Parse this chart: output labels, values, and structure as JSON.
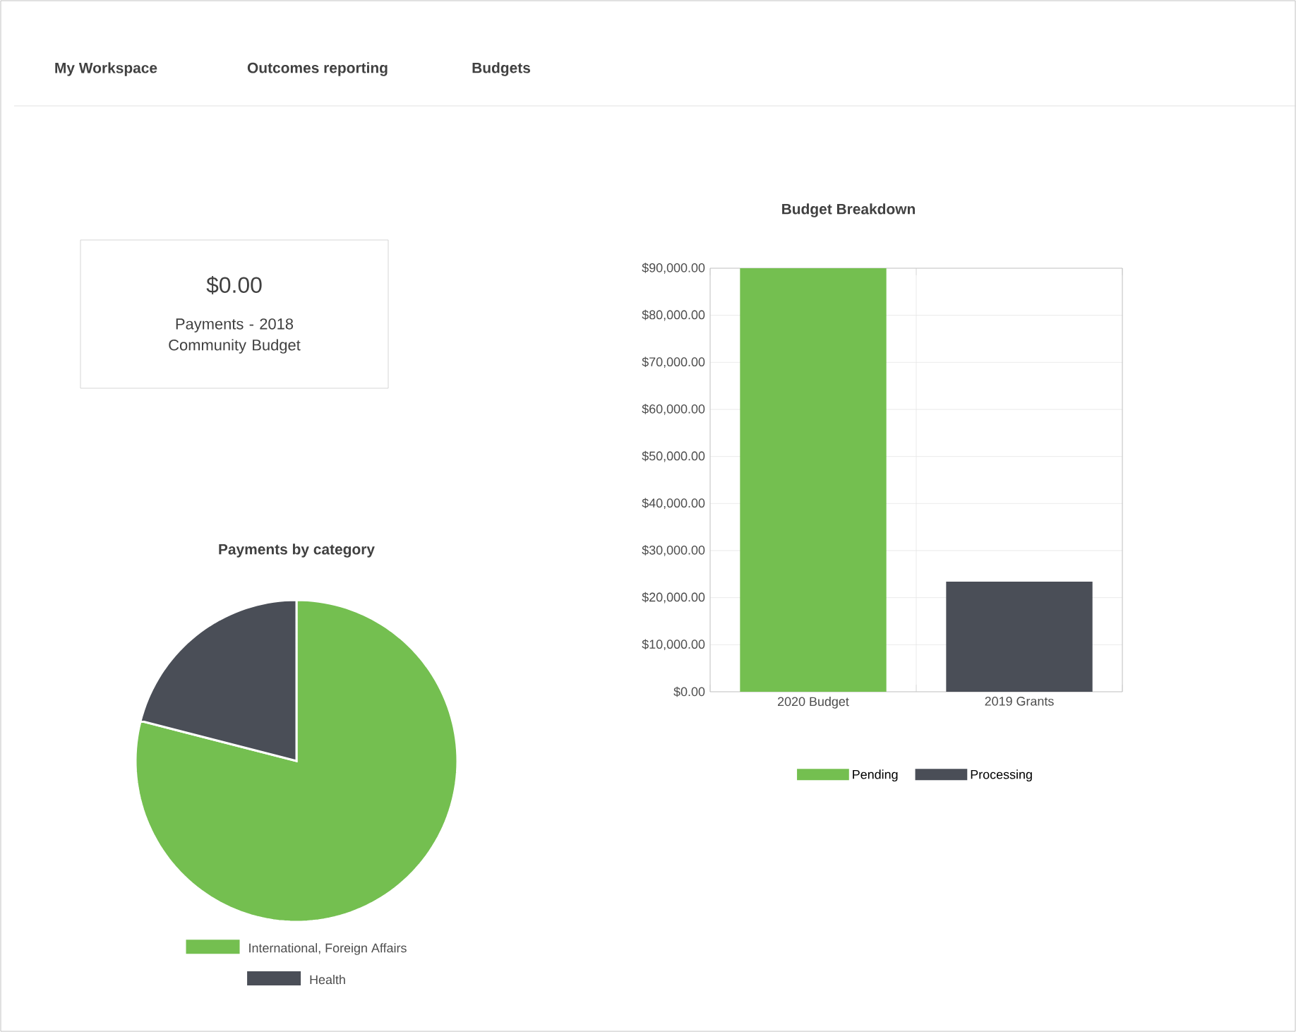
{
  "chart_data": [
    {
      "type": "other",
      "annotations": [
        "My Workspace",
        "Outcomes reporting",
        "Budgets"
      ]
    },
    {
      "type": "other",
      "title": "$0.00",
      "subtitle": "Payments - 2018 Community Budget"
    },
    {
      "type": "bar",
      "title": "Budget Breakdown",
      "categories": [
        "2020 Budget",
        "2019 Grants"
      ],
      "series": [
        {
          "name": "Pending",
          "color": "#74bf50",
          "values": [
            90000,
            null
          ]
        },
        {
          "name": "Processing",
          "color": "#4a4e57",
          "values": [
            null,
            23400
          ]
        }
      ],
      "ylim": [
        0,
        90000
      ],
      "yticks": [
        {
          "value": 0,
          "label": "$0.00"
        },
        {
          "value": 10000,
          "label": "$10,000.00"
        },
        {
          "value": 20000,
          "label": "$20,000.00"
        },
        {
          "value": 30000,
          "label": "$30,000.00"
        },
        {
          "value": 40000,
          "label": "$40,000.00"
        },
        {
          "value": 50000,
          "label": "$50,000.00"
        },
        {
          "value": 60000,
          "label": "$60,000.00"
        },
        {
          "value": 70000,
          "label": "$70,000.00"
        },
        {
          "value": 80000,
          "label": "$80,000.00"
        },
        {
          "value": 90000,
          "label": "$90,000.00"
        }
      ],
      "grid": true,
      "legend": "bottom"
    },
    {
      "type": "pie",
      "title": "Payments by category",
      "categories": [
        "International, Foreign Affairs",
        "Health"
      ],
      "values": [
        79,
        21
      ],
      "colors": [
        "#74bf50",
        "#4a4e57"
      ],
      "legend": "bottom"
    }
  ]
}
